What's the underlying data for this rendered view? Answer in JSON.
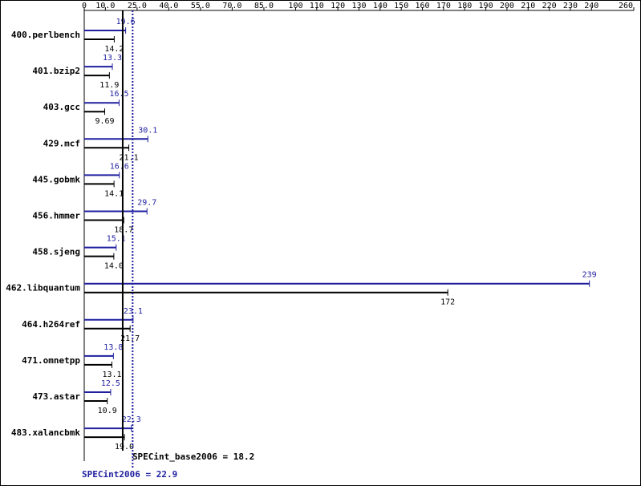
{
  "chart_data": {
    "type": "bar",
    "orientation": "horizontal",
    "categories": [
      "400.perlbench",
      "401.bzip2",
      "403.gcc",
      "429.mcf",
      "445.gobmk",
      "456.hmmer",
      "458.sjeng",
      "462.libquantum",
      "464.h264ref",
      "471.omnetpp",
      "473.astar",
      "483.xalancbmk"
    ],
    "series": [
      {
        "color": "#1f1f9f",
        "values": [
          19.6,
          13.3,
          16.5,
          30.1,
          16.6,
          29.7,
          15.1,
          239,
          23.1,
          13.8,
          12.5,
          22.3
        ]
      },
      {
        "color": "#000000",
        "values": [
          14.2,
          11.9,
          9.69,
          21.1,
          14.1,
          18.7,
          14.0,
          172,
          21.7,
          13.1,
          10.9,
          19.0
        ],
        "value_labels": [
          "14.2",
          "11.9",
          "9.69",
          "21.1",
          "14.1",
          "18.7",
          "14.0",
          "172",
          "21.7",
          "13.1",
          "10.9",
          "19.0"
        ]
      }
    ],
    "xlim": [
      0,
      260
    ],
    "xticks": [
      0,
      {
        "value": 10,
        "label": "10.0"
      },
      {
        "value": 25,
        "label": "25.0"
      },
      {
        "value": 40,
        "label": "40.0"
      },
      {
        "value": 55,
        "label": "55.0"
      },
      {
        "value": 70,
        "label": "70.0"
      },
      {
        "value": 85,
        "label": "85.0"
      },
      100,
      110,
      120,
      130,
      140,
      150,
      160,
      170,
      180,
      190,
      200,
      210,
      220,
      230,
      240,
      260
    ],
    "reference_lines": [
      {
        "label": "SPECint_base2006 = 18.2",
        "value": 18.2,
        "color": "#000000"
      },
      {
        "label": "SPECint2006 = 22.9",
        "value": 22.9,
        "color": "#1f1f9f"
      }
    ]
  }
}
